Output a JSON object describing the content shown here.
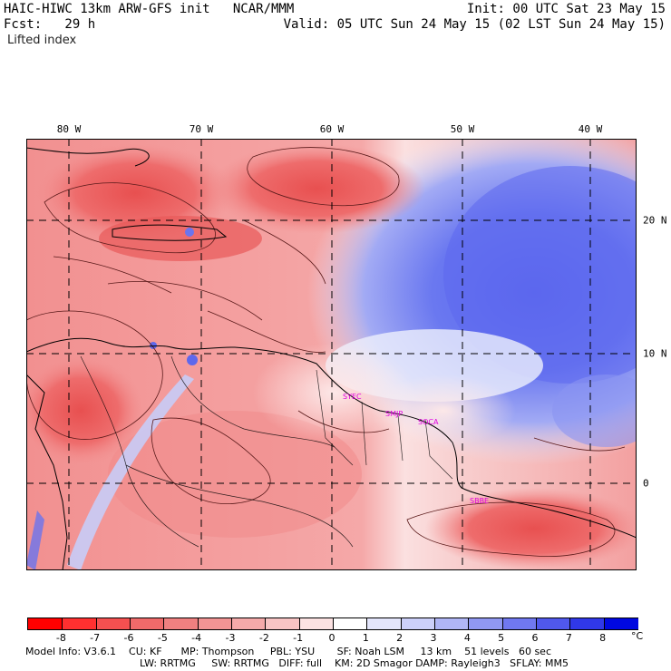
{
  "header": {
    "model_line": "HAIC-HIWC 13km ARW-GFS init   NCAR/MMM",
    "init_line": "Init: 00 UTC Sat 23 May 15",
    "fcst_line": "Fcst:   29 h",
    "valid_line": "Valid: 05 UTC Sun 24 May 15 (02 LST Sun 24 May 15)",
    "field_name": "Lifted index"
  },
  "map": {
    "lon_labels": [
      "80 W",
      "70 W",
      "60 W",
      "50 W",
      "40 W"
    ],
    "lat_labels": [
      "20 N",
      "10 N",
      "0"
    ],
    "station_labels": [
      "SYEC",
      "SMJP",
      "SOCA",
      "SBBE"
    ],
    "unstable_color": "#f06060",
    "stable_color": "#5a6ef0"
  },
  "colorbar": {
    "ticks": [
      "-8",
      "-7",
      "-6",
      "-5",
      "-4",
      "-3",
      "-2",
      "-1",
      "0",
      "1",
      "2",
      "3",
      "4",
      "5",
      "6",
      "7",
      "8"
    ],
    "unit": "°C",
    "colors": [
      "#ff0000",
      "#ff3030",
      "#f55050",
      "#f06a6a",
      "#f08080",
      "#f29494",
      "#f5aaaa",
      "#f8c4c4",
      "#fce2e2",
      "#ffffff",
      "#e4e6fc",
      "#ccd0fa",
      "#b0b6f6",
      "#9098f2",
      "#7078f0",
      "#5058ec",
      "#3038e8",
      "#0008e0"
    ]
  },
  "footer": {
    "line1": "Model Info: V3.6.1    CU: KF      MP: Thompson     PBL: YSU       SF: Noah LSM     13 km    51 levels   60 sec",
    "line2": "LW: RRTMG     SW: RRTMG   DIFF: full    KM: 2D Smagor DAMP: Rayleigh3   SFLAY: MM5"
  }
}
